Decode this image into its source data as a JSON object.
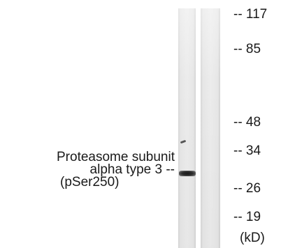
{
  "protein_label": {
    "line1": "Proteasome subunit",
    "line2": "alpha type 3 --",
    "line3": "(pSer250)"
  },
  "markers": {
    "m117": "-- 117",
    "m85": "-- 85",
    "m48": "-- 48",
    "m34": "-- 34",
    "m26": "-- 26",
    "m19": "-- 19"
  },
  "unit": "(kD)"
}
